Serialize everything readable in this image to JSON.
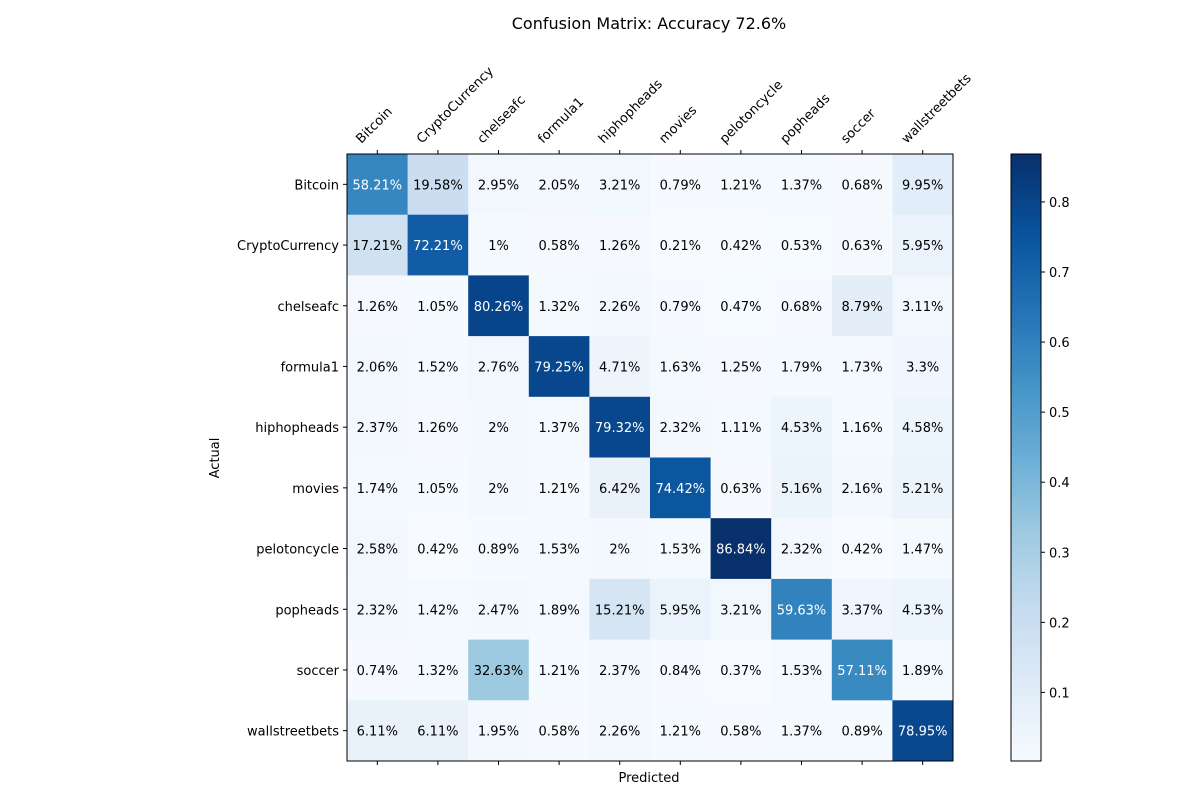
{
  "chart_data": {
    "type": "heatmap",
    "title": "Confusion Matrix: Accuracy 72.6%",
    "xlabel": "Predicted",
    "ylabel": "Actual",
    "x_categories": [
      "Bitcoin",
      "CryptoCurrency",
      "chelseafc",
      "formula1",
      "hiphopheads",
      "movies",
      "pelotoncycle",
      "popheads",
      "soccer",
      "wallstreetbets"
    ],
    "y_categories": [
      "Bitcoin",
      "CryptoCurrency",
      "chelseafc",
      "formula1",
      "hiphopheads",
      "movies",
      "pelotoncycle",
      "popheads",
      "soccer",
      "wallstreetbets"
    ],
    "values": [
      [
        58.21,
        19.58,
        2.95,
        2.05,
        3.21,
        0.79,
        1.21,
        1.37,
        0.68,
        9.95
      ],
      [
        17.21,
        72.21,
        1.0,
        0.58,
        1.26,
        0.21,
        0.42,
        0.53,
        0.63,
        5.95
      ],
      [
        1.26,
        1.05,
        80.26,
        1.32,
        2.26,
        0.79,
        0.47,
        0.68,
        8.79,
        3.11
      ],
      [
        2.06,
        1.52,
        2.76,
        79.25,
        4.71,
        1.63,
        1.25,
        1.79,
        1.73,
        3.3
      ],
      [
        2.37,
        1.26,
        2.0,
        1.37,
        79.32,
        2.32,
        1.11,
        4.53,
        1.16,
        4.58
      ],
      [
        1.74,
        1.05,
        2.0,
        1.21,
        6.42,
        74.42,
        0.63,
        5.16,
        2.16,
        5.21
      ],
      [
        2.58,
        0.42,
        0.89,
        1.53,
        2.0,
        1.53,
        86.84,
        2.32,
        0.42,
        1.47
      ],
      [
        2.32,
        1.42,
        2.47,
        1.89,
        15.21,
        5.95,
        3.21,
        59.63,
        3.37,
        4.53
      ],
      [
        0.74,
        1.32,
        32.63,
        1.21,
        2.37,
        0.84,
        0.37,
        1.53,
        57.11,
        1.89
      ],
      [
        6.11,
        6.11,
        1.95,
        0.58,
        2.26,
        1.21,
        0.58,
        1.37,
        0.89,
        78.95
      ]
    ],
    "value_suffix": "%",
    "colormap": "Blues",
    "colorbar": {
      "ticks": [
        0.1,
        0.2,
        0.3,
        0.4,
        0.5,
        0.6,
        0.7,
        0.8
      ],
      "tick_labels": [
        "0.1",
        "0.2",
        "0.3",
        "0.4",
        "0.5",
        "0.6",
        "0.7",
        "0.8"
      ]
    },
    "grid": false,
    "x_tick_position": "top"
  }
}
